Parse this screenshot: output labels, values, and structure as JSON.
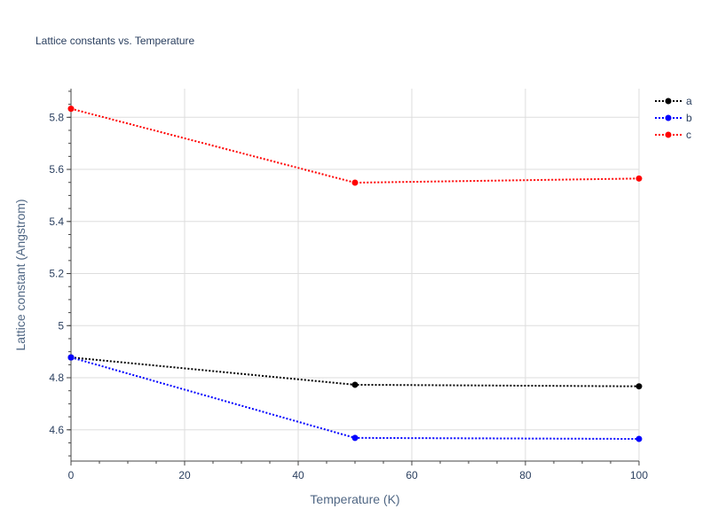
{
  "chart_data": {
    "type": "line",
    "title": "Lattice constants vs. Temperature",
    "xlabel": "Temperature (K)",
    "ylabel": "Lattice constant (Angstrom)",
    "xlim": [
      0,
      100
    ],
    "ylim": [
      4.48,
      5.91
    ],
    "x_ticks": [
      0,
      20,
      40,
      60,
      80,
      100
    ],
    "y_ticks": [
      4.6,
      4.8,
      5,
      5.2,
      5.4,
      5.6,
      5.8
    ],
    "x_minor_step": 5,
    "y_minor_step": 0.05,
    "grid": true,
    "legend_position": "top-right",
    "line_style": "dotted",
    "x": [
      0,
      50,
      100
    ],
    "series": [
      {
        "name": "a",
        "color": "#000000",
        "values": [
          4.878,
          4.773,
          4.767
        ]
      },
      {
        "name": "b",
        "color": "#0000ff",
        "values": [
          4.878,
          4.569,
          4.565
        ]
      },
      {
        "name": "c",
        "color": "#ff0000",
        "values": [
          5.833,
          5.549,
          5.565
        ]
      }
    ]
  }
}
